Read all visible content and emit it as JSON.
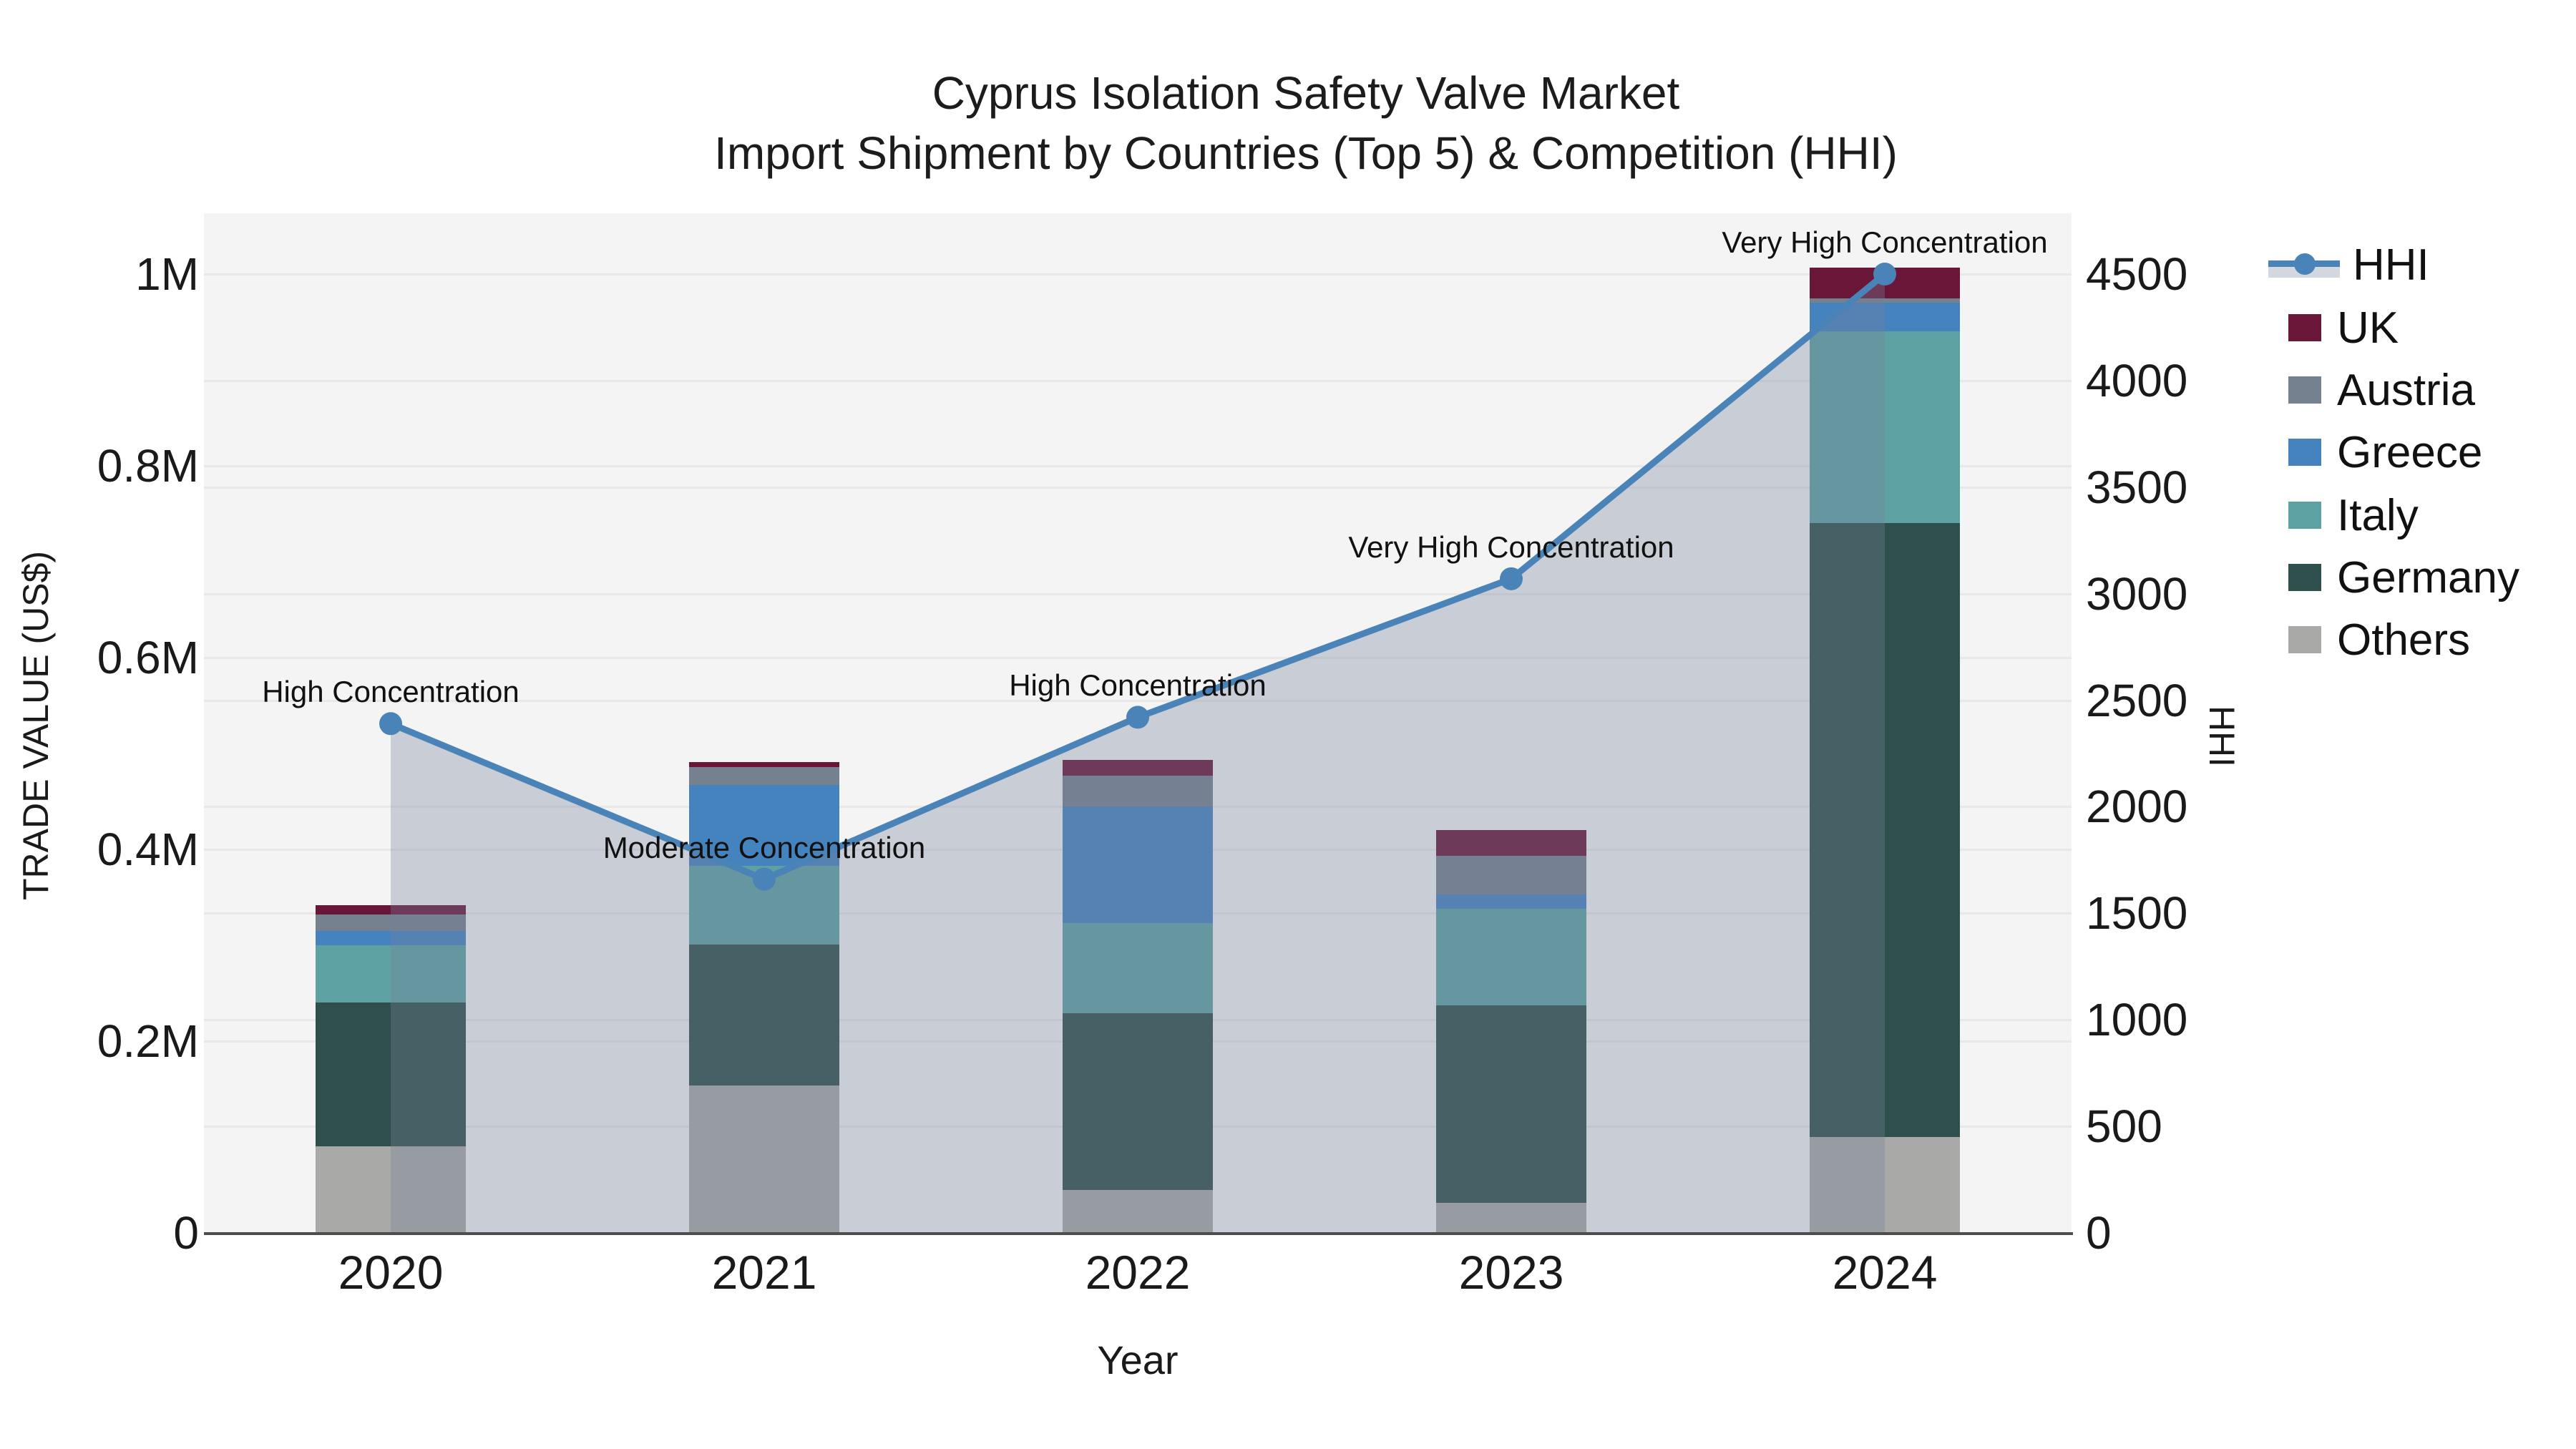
{
  "title": {
    "line1": "Cyprus Isolation Safety Valve Market",
    "line2": "Import Shipment by Countries (Top 5) & Competition (HHI)"
  },
  "axes": {
    "x_title": "Year",
    "y_left_title": "TRADE VALUE (US$)",
    "y_right_title": "HHI",
    "y_left_ticks": [
      "0",
      "0.2M",
      "0.4M",
      "0.6M",
      "0.8M",
      "1M"
    ],
    "y_right_ticks": [
      "0",
      "500",
      "1000",
      "1500",
      "2000",
      "2500",
      "3000",
      "3500",
      "4000",
      "4500"
    ]
  },
  "legend": {
    "items": [
      {
        "label": "HHI",
        "type": "line"
      },
      {
        "label": "UK",
        "type": "swatch",
        "color": "#6a1638"
      },
      {
        "label": "Austria",
        "type": "swatch",
        "color": "#75818f"
      },
      {
        "label": "Greece",
        "type": "swatch",
        "color": "#4583be"
      },
      {
        "label": "Italy",
        "type": "swatch",
        "color": "#5ea1a2"
      },
      {
        "label": "Germany",
        "type": "swatch",
        "color": "#2e4f4b"
      },
      {
        "label": "Others",
        "type": "swatch",
        "color": "#a9aaa7"
      }
    ]
  },
  "colors": {
    "hhi_line": "#4a83b8",
    "hhi_area": "#74809a",
    "hhi_area_opacity": 0.34,
    "plot_bg": "#f4f4f4",
    "grid": "#e8e8e8",
    "axis_spine": "#4d4d4d",
    "uk": "#6a1638",
    "austria": "#75818f",
    "greece": "#4583be",
    "italy": "#5ea1a2",
    "germany": "#2e4f4b",
    "others": "#a9aaa7"
  },
  "chart_data": {
    "type": "bar+line",
    "title": "Cyprus Isolation Safety Valve Market — Import Shipment by Countries (Top 5) & Competition (HHI)",
    "xlabel": "Year",
    "ylabel_left": "TRADE VALUE (US$)",
    "ylabel_right": "HHI",
    "categories": [
      "2020",
      "2021",
      "2022",
      "2023",
      "2024"
    ],
    "bar_unit": "million US$",
    "ylim_left_musd": [
      0,
      1.0
    ],
    "ylim_right_hhi": [
      0,
      4500
    ],
    "stack_order_bottom_to_top": [
      "Others",
      "Germany",
      "Italy",
      "Greece",
      "Austria",
      "UK"
    ],
    "series": [
      {
        "name": "UK",
        "color": "#6a1638",
        "values_musd": [
          0.01,
          0.005,
          0.016,
          0.027,
          0.032
        ]
      },
      {
        "name": "Austria",
        "color": "#75818f",
        "values_musd": [
          0.017,
          0.019,
          0.032,
          0.04,
          0.005
        ]
      },
      {
        "name": "Greece",
        "color": "#4583be",
        "values_musd": [
          0.015,
          0.084,
          0.122,
          0.015,
          0.03
        ]
      },
      {
        "name": "Italy",
        "color": "#5ea1a2",
        "values_musd": [
          0.06,
          0.082,
          0.094,
          0.101,
          0.2
        ]
      },
      {
        "name": "Germany",
        "color": "#2e4f4b",
        "values_musd": [
          0.15,
          0.147,
          0.184,
          0.206,
          0.64
        ]
      },
      {
        "name": "Others",
        "color": "#a9aaa7",
        "values_musd": [
          0.09,
          0.154,
          0.045,
          0.031,
          0.1
        ]
      }
    ],
    "hhi_line": {
      "name": "HHI",
      "values": [
        2390,
        1660,
        2420,
        3070,
        4500
      ]
    },
    "annotations": [
      {
        "category": "2020",
        "text": "High Concentration"
      },
      {
        "category": "2021",
        "text": "Moderate Concentration"
      },
      {
        "category": "2022",
        "text": "High Concentration"
      },
      {
        "category": "2023",
        "text": "Very High Concentration"
      },
      {
        "category": "2024",
        "text": "Very High Concentration"
      }
    ],
    "legend_position": "right",
    "grid": "on"
  }
}
